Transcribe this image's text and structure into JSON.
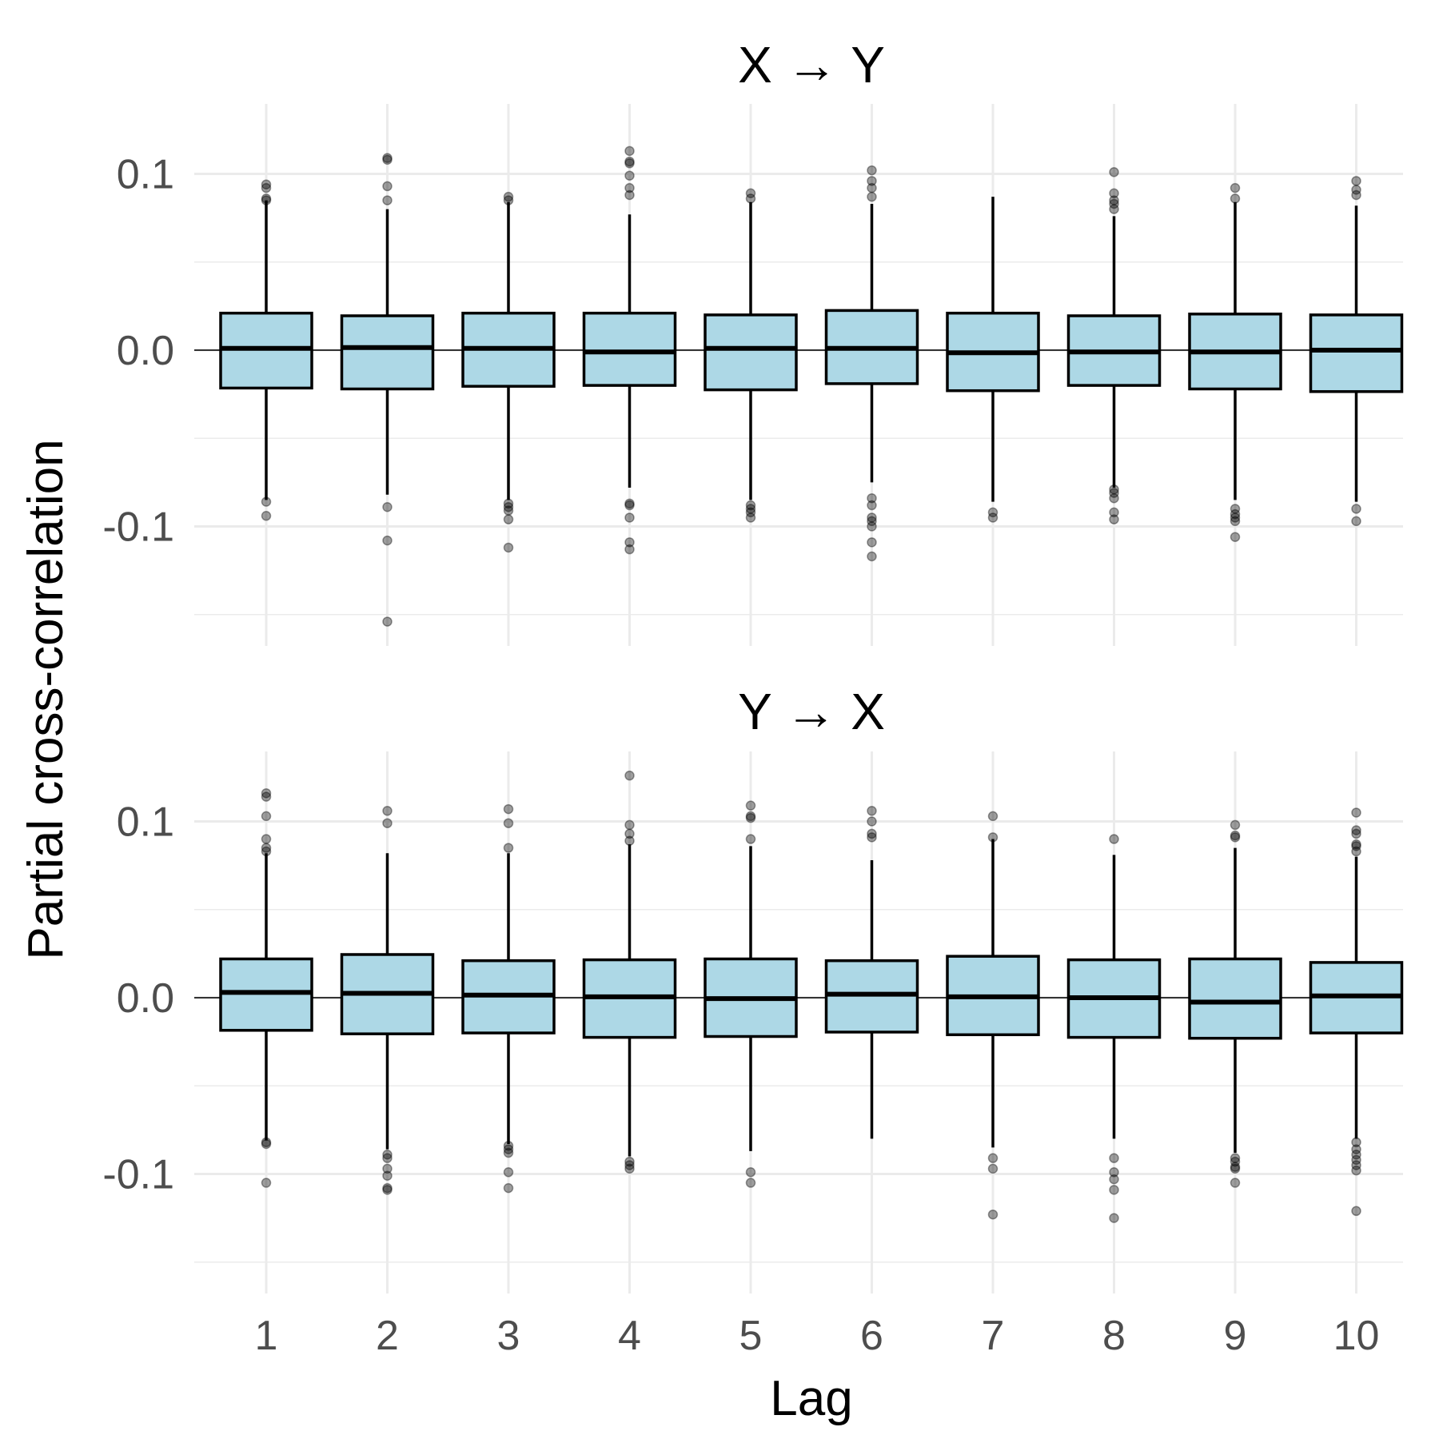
{
  "chart_data": {
    "type": "box",
    "xlabel": "Lag",
    "ylabel": "Partial cross-correlation",
    "categories": [
      "1",
      "2",
      "3",
      "4",
      "5",
      "6",
      "7",
      "8",
      "9",
      "10"
    ],
    "yticks": [
      -0.1,
      0.0,
      0.1
    ],
    "ytick_labels": [
      "-0.1",
      "0.0",
      "0.1"
    ],
    "ylim": [
      -0.165,
      0.14
    ],
    "grid": true,
    "box_fill": "#add8e6",
    "reference_line_y": 0,
    "panels": [
      {
        "title": "X → Y",
        "boxes": [
          {
            "lag": "1",
            "q1": -0.0215,
            "median": 0.001,
            "q3": 0.021,
            "whisker_low": -0.085,
            "whisker_high": 0.085,
            "outliers": [
              0.094,
              0.092,
              0.086,
              0.085,
              -0.086,
              -0.094
            ]
          },
          {
            "lag": "2",
            "q1": -0.022,
            "median": 0.0015,
            "q3": 0.0195,
            "whisker_low": -0.082,
            "whisker_high": 0.08,
            "outliers": [
              0.109,
              0.108,
              0.093,
              0.085,
              -0.089,
              -0.108,
              -0.154
            ]
          },
          {
            "lag": "3",
            "q1": -0.0205,
            "median": 0.001,
            "q3": 0.021,
            "whisker_low": -0.085,
            "whisker_high": 0.084,
            "outliers": [
              0.087,
              0.085,
              -0.087,
              -0.089,
              -0.091,
              -0.096,
              -0.112
            ]
          },
          {
            "lag": "4",
            "q1": -0.02,
            "median": -0.001,
            "q3": 0.021,
            "whisker_low": -0.078,
            "whisker_high": 0.077,
            "outliers": [
              0.113,
              0.107,
              0.106,
              0.099,
              0.092,
              0.088,
              -0.087,
              -0.088,
              -0.095,
              -0.109,
              -0.113
            ]
          },
          {
            "lag": "5",
            "q1": -0.0225,
            "median": 0.001,
            "q3": 0.02,
            "whisker_low": -0.085,
            "whisker_high": 0.084,
            "outliers": [
              0.089,
              0.086,
              -0.088,
              -0.09,
              -0.092,
              -0.095
            ]
          },
          {
            "lag": "6",
            "q1": -0.019,
            "median": 0.001,
            "q3": 0.0225,
            "whisker_low": -0.075,
            "whisker_high": 0.083,
            "outliers": [
              0.102,
              0.096,
              0.092,
              0.087,
              -0.084,
              -0.088,
              -0.095,
              -0.097,
              -0.1,
              -0.109,
              -0.117
            ]
          },
          {
            "lag": "7",
            "q1": -0.023,
            "median": -0.0015,
            "q3": 0.021,
            "whisker_low": -0.086,
            "whisker_high": 0.087,
            "outliers": [
              -0.092,
              -0.095
            ]
          },
          {
            "lag": "8",
            "q1": -0.02,
            "median": -0.001,
            "q3": 0.0195,
            "whisker_low": -0.078,
            "whisker_high": 0.076,
            "outliers": [
              0.101,
              0.089,
              0.085,
              0.083,
              0.08,
              -0.079,
              -0.081,
              -0.084,
              -0.092,
              -0.096
            ]
          },
          {
            "lag": "9",
            "q1": -0.022,
            "median": -0.001,
            "q3": 0.0205,
            "whisker_low": -0.085,
            "whisker_high": 0.084,
            "outliers": [
              0.092,
              0.086,
              -0.09,
              -0.093,
              -0.095,
              -0.097,
              -0.106
            ]
          },
          {
            "lag": "10",
            "q1": -0.0235,
            "median": 0.0,
            "q3": 0.02,
            "whisker_low": -0.086,
            "whisker_high": 0.082,
            "outliers": [
              0.096,
              0.091,
              0.088,
              -0.09,
              -0.097
            ]
          }
        ]
      },
      {
        "title": "Y → X",
        "boxes": [
          {
            "lag": "1",
            "q1": -0.0185,
            "median": 0.003,
            "q3": 0.022,
            "whisker_low": -0.081,
            "whisker_high": 0.082,
            "outliers": [
              0.116,
              0.114,
              0.103,
              0.09,
              0.085,
              0.083,
              -0.082,
              -0.083,
              -0.105
            ]
          },
          {
            "lag": "2",
            "q1": -0.0205,
            "median": 0.0025,
            "q3": 0.0245,
            "whisker_low": -0.086,
            "whisker_high": 0.082,
            "outliers": [
              0.106,
              0.099,
              -0.089,
              -0.091,
              -0.097,
              -0.101,
              -0.108,
              -0.109
            ]
          },
          {
            "lag": "3",
            "q1": -0.02,
            "median": 0.0015,
            "q3": 0.021,
            "whisker_low": -0.083,
            "whisker_high": 0.082,
            "outliers": [
              0.107,
              0.099,
              0.085,
              -0.084,
              -0.086,
              -0.088,
              -0.099,
              -0.108
            ]
          },
          {
            "lag": "4",
            "q1": -0.0225,
            "median": 0.0005,
            "q3": 0.0215,
            "whisker_low": -0.09,
            "whisker_high": 0.087,
            "outliers": [
              0.126,
              0.098,
              0.093,
              0.089,
              -0.093,
              -0.095,
              -0.097
            ]
          },
          {
            "lag": "5",
            "q1": -0.022,
            "median": -0.0005,
            "q3": 0.022,
            "whisker_low": -0.087,
            "whisker_high": 0.086,
            "outliers": [
              0.109,
              0.103,
              0.102,
              0.09,
              -0.099,
              -0.105
            ]
          },
          {
            "lag": "6",
            "q1": -0.0195,
            "median": 0.002,
            "q3": 0.021,
            "whisker_low": -0.08,
            "whisker_high": 0.078,
            "outliers": [
              0.106,
              0.1,
              0.093,
              0.091
            ]
          },
          {
            "lag": "7",
            "q1": -0.021,
            "median": 0.0005,
            "q3": 0.0235,
            "whisker_low": -0.085,
            "whisker_high": 0.09,
            "outliers": [
              0.103,
              0.091,
              -0.091,
              -0.097,
              -0.123
            ]
          },
          {
            "lag": "8",
            "q1": -0.0225,
            "median": 0.0,
            "q3": 0.0215,
            "whisker_low": -0.08,
            "whisker_high": 0.081,
            "outliers": [
              0.09,
              -0.091,
              -0.099,
              -0.103,
              -0.109,
              -0.125
            ]
          },
          {
            "lag": "9",
            "q1": -0.023,
            "median": -0.0025,
            "q3": 0.022,
            "whisker_low": -0.088,
            "whisker_high": 0.085,
            "outliers": [
              0.098,
              0.092,
              0.091,
              -0.091,
              -0.093,
              -0.096,
              -0.097,
              -0.105
            ]
          },
          {
            "lag": "10",
            "q1": -0.02,
            "median": 0.001,
            "q3": 0.02,
            "whisker_low": -0.08,
            "whisker_high": 0.08,
            "outliers": [
              0.105,
              0.095,
              0.093,
              0.087,
              0.086,
              0.083,
              -0.082,
              -0.086,
              -0.089,
              -0.092,
              -0.095,
              -0.098,
              -0.121
            ]
          }
        ]
      }
    ]
  }
}
